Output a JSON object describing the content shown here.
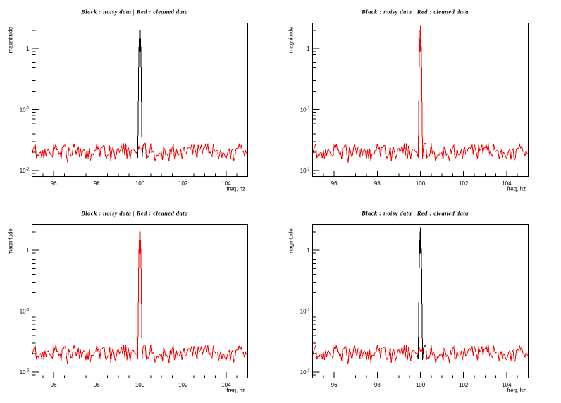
{
  "app": {
    "type": "ROOT-canvas-screenshot",
    "background": "#ffffff"
  },
  "chart_data": {
    "type": "line",
    "layout_grid": "2x2",
    "title": "Black : noisy data | Red : cleaned data",
    "xlabel": "freq, hz",
    "ylabel": "magnitude",
    "xlim": [
      95,
      105
    ],
    "ylim": [
      0.008,
      2.66
    ],
    "yscale": "log",
    "x_start": 95,
    "x_step": 0.05,
    "x_ticks": {
      "major": [
        96,
        98,
        100,
        102,
        104
      ],
      "labels": [
        "96",
        "98",
        "100",
        "102",
        "104"
      ],
      "minor_step": 0.5
    },
    "y_ticks": {
      "major": [
        1,
        0.1,
        0.01
      ],
      "labels": [
        {
          "mantissa": "1",
          "exponent": ""
        },
        {
          "mantissa": "10",
          "exponent": "-1"
        },
        {
          "mantissa": "10",
          "exponent": "-2"
        }
      ]
    },
    "series_colors": {
      "noisy": "#000000",
      "cleaned": "#ff0000"
    },
    "noise_floor": [
      0.01877,
      0.02226,
      0.0244,
      0.02744,
      0.01614,
      0.01813,
      0.01744,
      0.01951,
      0.02013,
      0.01629,
      0.02159,
      0.01587,
      0.02252,
      0.0175,
      0.0217,
      0.02219,
      0.02032,
      0.01854,
      0.01791,
      0.01675,
      0.02632,
      0.02275,
      0.02765,
      0.022,
      0.02188,
      0.01858,
      0.0198,
      0.0154,
      0.02417,
      0.02417,
      0.02611,
      0.02602,
      0.01706,
      0.0135,
      0.02338,
      0.0216,
      0.01722,
      0.01742,
      0.02352,
      0.0274,
      0.02223,
      0.01821,
      0.02365,
      0.02462,
      0.0165,
      0.02333,
      0.01721,
      0.02083,
      0.02239,
      0.02092,
      0.01553,
      0.02201,
      0.01578,
      0.0231,
      0.01433,
      0.01884,
      0.0189,
      0.0181,
      0.02144,
      0.02158,
      0.02751,
      0.02225,
      0.02462,
      0.01665,
      0.02447,
      0.02375,
      0.02566,
      0.02585,
      0.01744,
      0.01606,
      0.01784,
      0.01833,
      0.02575,
      0.01411,
      0.02087,
      0.02424,
      0.02011,
      0.0157,
      0.01746,
      0.02255,
      0.02325,
      0.02009,
      0.02184,
      0.02574,
      0.01937,
      0.0278,
      0.01709,
      0.0278,
      0.01566,
      0.02554,
      0.02073,
      0.01535,
      0.02111,
      0.02256,
      0.02268,
      0.02108,
      0.02002,
      0.01953,
      0.02102,
      0.02503,
      0.02229,
      0.02308,
      0.02133,
      0.02577,
      0.0278,
      0.0278,
      0.01633,
      0.01748,
      0.01687,
      0.0193,
      0.0278,
      0.01927,
      0.02103,
      0.01987,
      0.01428,
      0.01638,
      0.01795,
      0.01749,
      0.01934,
      0.01886,
      0.01979,
      0.01504,
      0.02425,
      0.02235,
      0.01796,
      0.01879,
      0.01741,
      0.01418,
      0.02299,
      0.01896,
      0.02447,
      0.0262,
      0.01589,
      0.01654,
      0.02245,
      0.01855,
      0.01811,
      0.01908,
      0.02212,
      0.0158,
      0.02095,
      0.02461,
      0.01852,
      0.01921,
      0.02217,
      0.02411,
      0.02417,
      0.02232,
      0.02675,
      0.01823,
      0.02684,
      0.0227,
      0.01949,
      0.0156,
      0.02646,
      0.02158,
      0.02263,
      0.02658,
      0.01916,
      0.02349,
      0.02379,
      0.02689,
      0.02182,
      0.02779,
      0.01865,
      0.02051,
      0.01823,
      0.01716,
      0.02713,
      0.02168,
      0.02059,
      0.02138,
      0.02121,
      0.01541,
      0.01894,
      0.02203,
      0.01626,
      0.01986,
      0.01912,
      0.01698,
      0.01583,
      0.01833,
      0.02142,
      0.02257,
      0.01523,
      0.0212,
      0.02274,
      0.01472,
      0.0158,
      0.02259,
      0.02322,
      0.02266,
      0.02673,
      0.0232,
      0.02578,
      0.02069,
      0.02075,
      0.01733,
      0.02106,
      0.01921,
      0.0184
    ],
    "peak_bins": {
      "99.90": 0.0163,
      "99.95": 0.88,
      "100.00": 2.4,
      "100.05": 0.9,
      "100.10": 0.0158
    },
    "skirt_bins": {
      "100.20": 0.94,
      "100.35": 0.95
    },
    "panels": [
      {
        "name": "top-left",
        "peak_color": "#000000",
        "draw": [
          {
            "curve": "peak_skirted",
            "color": "#000000"
          },
          {
            "curve": "noise",
            "color": "#ff0000"
          }
        ]
      },
      {
        "name": "top-right",
        "peak_color": "#ff0000",
        "draw": [
          {
            "curve": "peak",
            "color": "#000000"
          },
          {
            "curve": "peak",
            "color": "#ff0000"
          }
        ]
      },
      {
        "name": "bottom-left",
        "peak_color": "#ff0000",
        "draw": [
          {
            "curve": "peak",
            "color": "#000000"
          },
          {
            "curve": "peak",
            "color": "#ff0000"
          }
        ]
      },
      {
        "name": "bottom-right",
        "peak_color": "#000000",
        "draw": [
          {
            "curve": "peak_skirted",
            "color": "#000000"
          },
          {
            "curve": "noise",
            "color": "#ff0000"
          }
        ]
      }
    ]
  }
}
